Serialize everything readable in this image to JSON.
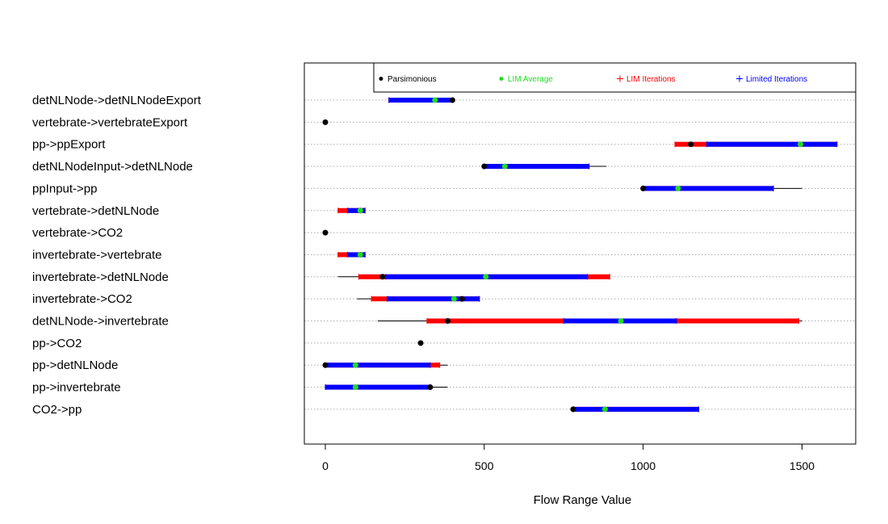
{
  "chart_data": {
    "type": "range-dot",
    "xlabel": "Flow Range Value",
    "xlim": [
      -65,
      1665
    ],
    "x_ticks": [
      "0",
      "500",
      "1000",
      "1500"
    ],
    "x_tick_values": [
      0,
      500,
      1000,
      1500
    ],
    "grid": "horizontal dotted",
    "legend": {
      "placement": "top",
      "entries": [
        {
          "key": "parsimonious",
          "symbol": "dot",
          "label": "Parsimonious",
          "color": "#000000"
        },
        {
          "key": "lim_average",
          "symbol": "dot",
          "label": "LIM Average",
          "color": "#22dd22"
        },
        {
          "key": "lim_iterations",
          "symbol": "plus",
          "label": "LIM Iterations",
          "color": "#ff0000"
        },
        {
          "key": "limited_iterations",
          "symbol": "plus",
          "label": "Limited Iterations",
          "color": "#0000ff"
        }
      ]
    },
    "flows": [
      {
        "label": "detNLNode->detNLNodeExport",
        "range": [
          200,
          400
        ],
        "lim": [
          200,
          400
        ],
        "limited": [
          200,
          400
        ],
        "parsimonious": 400,
        "lim_average": 345
      },
      {
        "label": "vertebrate->vertebrateExport",
        "range": null,
        "lim": null,
        "limited": null,
        "parsimonious": 0,
        "lim_average": null
      },
      {
        "label": "pp->ppExport",
        "range": [
          1100,
          1610
        ],
        "lim": [
          1100,
          1610
        ],
        "limited": [
          1200,
          1610
        ],
        "parsimonious": 1150,
        "lim_average": 1495
      },
      {
        "label": "detNLNodeInput->detNLNode",
        "range": [
          500,
          885
        ],
        "lim": [
          500,
          830
        ],
        "limited": [
          500,
          830
        ],
        "parsimonious": 500,
        "lim_average": 565
      },
      {
        "label": "ppInput->pp",
        "range": [
          1000,
          1500
        ],
        "lim": [
          1000,
          1410
        ],
        "limited": [
          1000,
          1410
        ],
        "parsimonious": 1000,
        "lim_average": 1110
      },
      {
        "label": "vertebrate->detNLNode",
        "range": [
          40,
          125
        ],
        "lim": [
          40,
          125
        ],
        "limited": [
          70,
          125
        ],
        "parsimonious": 110,
        "lim_average": 110
      },
      {
        "label": "vertebrate->CO2",
        "range": null,
        "lim": null,
        "limited": null,
        "parsimonious": 0,
        "lim_average": null
      },
      {
        "label": "invertebrate->vertebrate",
        "range": [
          40,
          125
        ],
        "lim": [
          40,
          125
        ],
        "limited": [
          70,
          125
        ],
        "parsimonious": 110,
        "lim_average": 110
      },
      {
        "label": "invertebrate->detNLNode",
        "range": [
          40,
          895
        ],
        "lim": [
          105,
          895
        ],
        "limited": [
          190,
          825
        ],
        "parsimonious": 180,
        "lim_average": 505
      },
      {
        "label": "invertebrate->CO2",
        "range": [
          100,
          485
        ],
        "lim": [
          145,
          485
        ],
        "limited": [
          195,
          485
        ],
        "parsimonious": 430,
        "lim_average": 405
      },
      {
        "label": "detNLNode->invertebrate",
        "range": [
          165,
          1500
        ],
        "lim": [
          320,
          1490
        ],
        "limited": [
          750,
          1105
        ],
        "parsimonious": 385,
        "lim_average": 930
      },
      {
        "label": "pp->CO2",
        "range": null,
        "lim": null,
        "limited": null,
        "parsimonious": 300,
        "lim_average": null
      },
      {
        "label": "pp->detNLNode",
        "range": [
          0,
          385
        ],
        "lim": [
          0,
          360
        ],
        "limited": [
          0,
          330
        ],
        "parsimonious": 0,
        "lim_average": 95
      },
      {
        "label": "pp->invertebrate",
        "range": [
          0,
          385
        ],
        "lim": [
          0,
          330
        ],
        "limited": [
          0,
          330
        ],
        "parsimonious": 330,
        "lim_average": 95
      },
      {
        "label": "CO2->pp",
        "range": [
          780,
          1175
        ],
        "lim": [
          780,
          1175
        ],
        "limited": [
          780,
          1175
        ],
        "parsimonious": 780,
        "lim_average": 880
      }
    ]
  }
}
